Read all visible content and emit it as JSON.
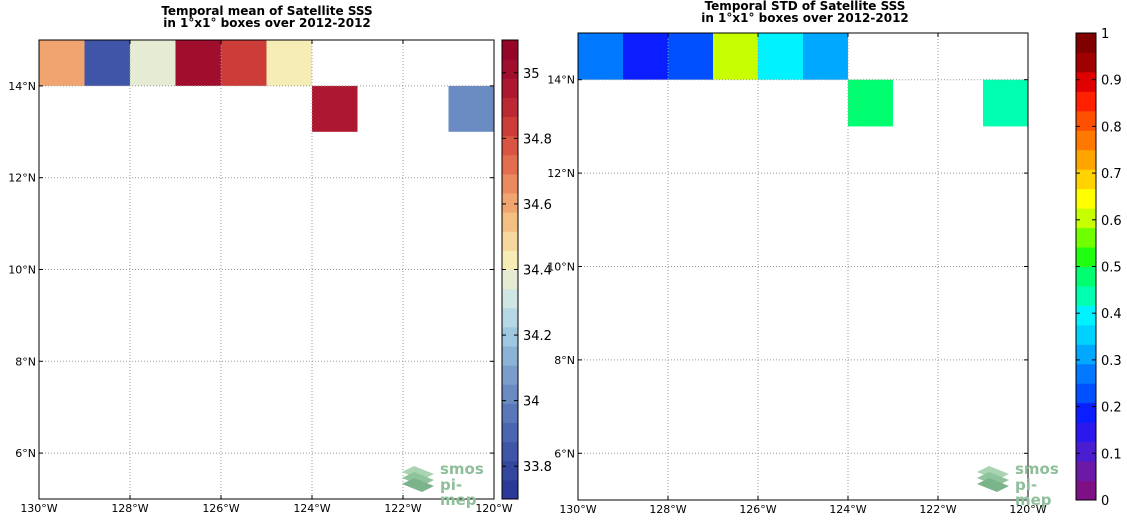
{
  "chart_data": [
    {
      "type": "heatmap",
      "title": "Temporal mean of Satellite SSS\nin 1°x1° boxes over 2012-2012",
      "xlabel": "",
      "ylabel": "",
      "xlim": [
        -130,
        -120
      ],
      "ylim": [
        5,
        15
      ],
      "x_tick_labels": [
        "130°W",
        "128°W",
        "126°W",
        "124°W",
        "122°W",
        "120°W"
      ],
      "y_tick_labels": [
        "6°N",
        "8°N",
        "10°N",
        "12°N",
        "14°N"
      ],
      "grid": true,
      "colorbar": {
        "min": 33.7,
        "max": 35.1,
        "levels": 24,
        "tick_labels": [
          "33.8",
          "34",
          "34.2",
          "34.4",
          "34.6",
          "34.8",
          "35"
        ],
        "colors": [
          "#2b3a99",
          "#33479e",
          "#3f55a8",
          "#4c65b0",
          "#5a78b9",
          "#6a8ac2",
          "#7a9dcb",
          "#8cb2d6",
          "#9fc7e0",
          "#b6d8e6",
          "#cfe6e4",
          "#e6ecd4",
          "#f6ecb6",
          "#f6d79d",
          "#f3bf83",
          "#f0a570",
          "#ea8a5e",
          "#e36e4f",
          "#d95442",
          "#cc3d3a",
          "#bc2834",
          "#ad1730",
          "#a00d2d",
          "#950529"
        ]
      },
      "cells": [
        {
          "lon": -130,
          "lat": 14,
          "value": 34.58
        },
        {
          "lon": -129,
          "lat": 14,
          "value": 33.82
        },
        {
          "lon": -128,
          "lat": 14,
          "value": 34.4
        },
        {
          "lon": -127,
          "lat": 14,
          "value": 35.02
        },
        {
          "lon": -126,
          "lat": 14,
          "value": 34.82
        },
        {
          "lon": -125,
          "lat": 14,
          "value": 34.45
        },
        {
          "lon": -124,
          "lat": 13,
          "value": 34.97
        },
        {
          "lon": -121,
          "lat": 13,
          "value": 34.05
        }
      ],
      "logo": {
        "line1": "smos",
        "line2": "pi-mep"
      }
    },
    {
      "type": "heatmap",
      "title": "Temporal STD of Satellite SSS\nin 1°x1° boxes over 2012-2012",
      "xlabel": "",
      "ylabel": "",
      "xlim": [
        -130,
        -120
      ],
      "ylim": [
        5,
        15
      ],
      "x_tick_labels": [
        "130°W",
        "128°W",
        "126°W",
        "124°W",
        "122°W",
        "120°W"
      ],
      "y_tick_labels": [
        "6°N",
        "8°N",
        "10°N",
        "12°N",
        "14°N"
      ],
      "grid": true,
      "colorbar": {
        "min": 0,
        "max": 1,
        "levels": 20,
        "tick_labels": [
          "0",
          "0.1",
          "0.2",
          "0.3",
          "0.4",
          "0.5",
          "0.6",
          "0.7",
          "0.8",
          "0.9",
          "1"
        ],
        "colors": [
          "#7f0f84",
          "#6a1aa6",
          "#4a1dd0",
          "#2a18ec",
          "#0a1eff",
          "#0050ff",
          "#0078ff",
          "#00a8ff",
          "#00d2ff",
          "#00f2ff",
          "#00ffb0",
          "#00ff70",
          "#20ff10",
          "#70ff00",
          "#c8ff00",
          "#ffff00",
          "#ffd200",
          "#ffa500",
          "#ff7800",
          "#ff5000"
        ]
      },
      "colorbar_top_colors": [
        "#ff2000",
        "#e00000",
        "#a00000",
        "#800000"
      ],
      "cells": [
        {
          "lon": -130,
          "lat": 14,
          "value": 0.34
        },
        {
          "lon": -129,
          "lat": 14,
          "value": 0.21
        },
        {
          "lon": -128,
          "lat": 14,
          "value": 0.29
        },
        {
          "lon": -127,
          "lat": 14,
          "value": 0.74
        },
        {
          "lon": -126,
          "lat": 14,
          "value": 0.46
        },
        {
          "lon": -125,
          "lat": 14,
          "value": 0.38
        },
        {
          "lon": -124,
          "lat": 13,
          "value": 0.57
        },
        {
          "lon": -121,
          "lat": 13,
          "value": 0.52
        }
      ],
      "logo": {
        "line1": "smos",
        "line2": "pi-mep"
      }
    }
  ]
}
